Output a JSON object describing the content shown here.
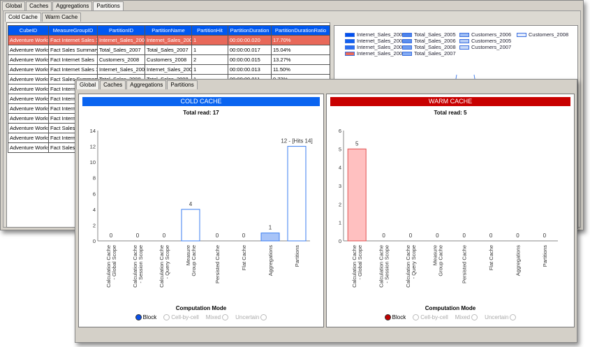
{
  "back": {
    "tabs": [
      "Global",
      "Caches",
      "Aggregations",
      "Partitions"
    ],
    "subtabs": [
      "Cold Cache",
      "Warm Cache"
    ],
    "columns": [
      "CubeID",
      "MeasureGroupID",
      "PartitionID",
      "PartitionName",
      "PartitionHit",
      "PartitionDuration",
      "PartitionDurationRatio"
    ],
    "rows": [
      [
        "Adventure Works",
        "Fact Internet Sales 1",
        "Internet_Sales_2008",
        "Internet_Sales_2008",
        "1",
        "00:00:00.020",
        "17.70%"
      ],
      [
        "Adventure Works",
        "Fact Sales Summary",
        "Total_Sales_2007",
        "Total_Sales_2007",
        "1",
        "00:00:00.017",
        "15.04%"
      ],
      [
        "Adventure Works",
        "Fact Internet Sales",
        "Customers_2008",
        "Customers_2008",
        "2",
        "00:00:00.015",
        "13.27%"
      ],
      [
        "Adventure Works",
        "Fact Internet Sales 1",
        "Internet_Sales_2007",
        "Internet_Sales_2007",
        "1",
        "00:00:00.013",
        "11.50%"
      ],
      [
        "Adventure Works",
        "Fact Sales Summary",
        "Total_Sales_2008",
        "Total_Sales_2008",
        "1",
        "00:00:00.011",
        "9.73%"
      ],
      [
        "Adventure Works",
        "Fact Interne",
        "",
        "",
        "",
        "",
        ""
      ],
      [
        "Adventure Works",
        "Fact Interne",
        "",
        "",
        "",
        "",
        ""
      ],
      [
        "Adventure Works",
        "Fact Interne",
        "",
        "",
        "",
        "",
        ""
      ],
      [
        "Adventure Works",
        "Fact Interne",
        "",
        "",
        "",
        "",
        ""
      ],
      [
        "Adventure Works",
        "Fact Sales",
        "",
        "",
        "",
        "",
        ""
      ],
      [
        "Adventure Works",
        "Fact Interne",
        "",
        "",
        "",
        "",
        ""
      ],
      [
        "Adventure Works",
        "Fact Sales",
        "",
        "",
        "",
        "",
        ""
      ]
    ],
    "legend": [
      {
        "label": "Internet_Sales_2005",
        "color": "#0050f0"
      },
      {
        "label": "Internet_Sales_2006",
        "color": "#1060f0"
      },
      {
        "label": "Internet_Sales_2007",
        "color": "#2a6ef0"
      },
      {
        "label": "Internet_Sales_2008",
        "color": "#e8695a"
      },
      {
        "label": "Total_Sales_2005",
        "color": "#4a82ec"
      },
      {
        "label": "Total_Sales_2006",
        "color": "#5a8eee"
      },
      {
        "label": "Total_Sales_2008",
        "color": "#6e9cf0"
      },
      {
        "label": "Total_Sales_2007",
        "color": "#82aaf2"
      },
      {
        "label": "Customers_2006",
        "color": "#9cbcf4"
      },
      {
        "label": "Customers_2005",
        "color": "#b4ccf6"
      },
      {
        "label": "Customers_2007",
        "color": "#c8daf8"
      },
      {
        "label": "Customers_2008",
        "color": "#e4ecfc"
      }
    ]
  },
  "front": {
    "tabs": [
      "Global",
      "Caches",
      "Aggregations",
      "Partitions"
    ],
    "computation_mode_label": "Computation Mode",
    "modes": [
      "Block",
      "Cell-by-cell",
      "Mixed",
      "Uncertain"
    ]
  },
  "chart_data": [
    {
      "type": "bar",
      "title": "COLD CACHE",
      "subtitle": "Total read: 17",
      "header_color": "#0a64f0",
      "fill": "#ffffff",
      "accent_fill": "#a8c4f8",
      "stroke": "#3b7ef0",
      "categories": [
        "Calculation Cache - Global Scope",
        "Calculation Cache - Session Scope",
        "Calculation Cache - Query Scope",
        "Measure Group Cache",
        "Persisted Cache",
        "Flat Cache",
        "Aggregations",
        "Partitions"
      ],
      "values": [
        0,
        0,
        0,
        4,
        0,
        0,
        1,
        12
      ],
      "data_labels": [
        "0",
        "0",
        "0",
        "4",
        "0",
        "0",
        "1",
        "12 - [Hits 14]"
      ],
      "ylim": [
        0,
        14
      ],
      "yticks": [
        0,
        2,
        4,
        6,
        8,
        10,
        12,
        14
      ],
      "selected_mode": "Block",
      "mode_color": "#0a50e8"
    },
    {
      "type": "bar",
      "title": "WARM CACHE",
      "subtitle": "Total read: 5",
      "header_color": "#c80000",
      "fill": "#ffc0c0",
      "stroke": "#e05050",
      "categories": [
        "Calculation Cache - Global Scope",
        "Calculation Cache - Session Scope",
        "Calculation Cache - Query Scope",
        "Measure Group Cache",
        "Persisted Cache",
        "Flat Cache",
        "Aggregations",
        "Partitions"
      ],
      "values": [
        5,
        0,
        0,
        0,
        0,
        0,
        0,
        0
      ],
      "data_labels": [
        "5",
        "0",
        "0",
        "0",
        "0",
        "0",
        "0",
        "0"
      ],
      "ylim": [
        0,
        6
      ],
      "yticks": [
        0,
        1,
        2,
        3,
        4,
        5,
        6
      ],
      "selected_mode": "Block",
      "mode_color": "#c00000"
    }
  ]
}
